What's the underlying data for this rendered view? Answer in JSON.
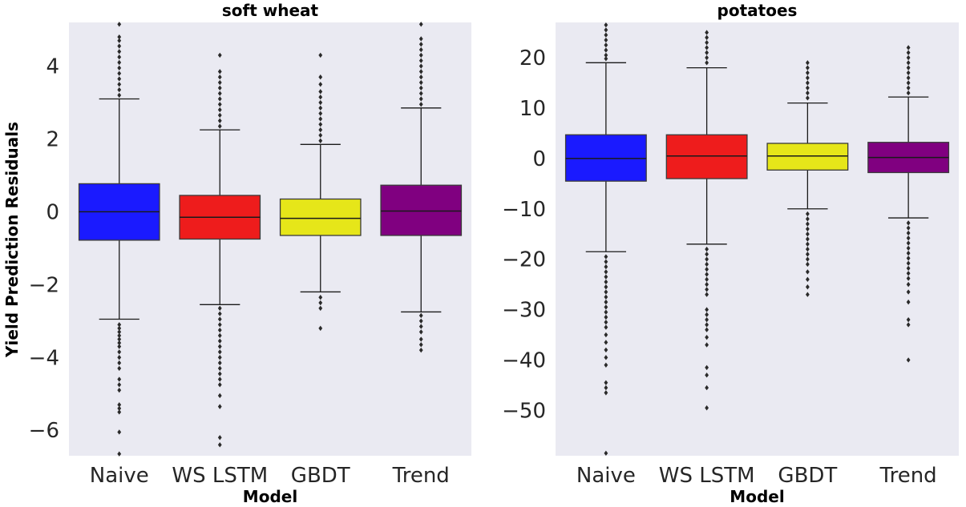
{
  "ylabel": "Yield Prediction Residuals",
  "colors": {
    "plot_bg": "#eaeaf2",
    "whisker": "#1a1a1a"
  },
  "chart_data": [
    {
      "type": "box",
      "title": "soft wheat",
      "xlabel": "Model",
      "ylabel": "Yield Prediction Residuals",
      "ylim": [
        -6.7,
        5.2
      ],
      "yticks": [
        4,
        2,
        0,
        -2,
        -4,
        -6
      ],
      "ytick_labels": [
        "4",
        "2",
        "0",
        "−2",
        "−4",
        "−6"
      ],
      "categories": [
        "Naive",
        "WS LSTM",
        "GBDT",
        "Trend"
      ],
      "boxes": [
        {
          "name": "Naive",
          "color": "#1a1aff",
          "whislo": -2.95,
          "q1": -0.78,
          "med": 0.0,
          "q3": 0.77,
          "whishi": 3.1,
          "fliers": [
            3.2,
            3.35,
            3.5,
            3.65,
            3.8,
            3.95,
            4.1,
            4.25,
            4.4,
            4.55,
            4.7,
            4.8,
            5.15,
            -3.1,
            -3.2,
            -3.3,
            -3.4,
            -3.5,
            -3.6,
            -3.7,
            -3.85,
            -4.0,
            -4.15,
            -4.3,
            -4.6,
            -4.75,
            -4.9,
            -5.3,
            -5.4,
            -5.5,
            -6.05,
            -6.65
          ]
        },
        {
          "name": "WS LSTM",
          "color": "#ee1c1c",
          "whislo": -2.55,
          "q1": -0.75,
          "med": -0.15,
          "q3": 0.45,
          "whishi": 2.25,
          "fliers": [
            2.35,
            2.5,
            2.65,
            2.8,
            2.95,
            3.1,
            3.25,
            3.4,
            3.55,
            3.7,
            3.85,
            4.3,
            -2.65,
            -2.8,
            -2.95,
            -3.1,
            -3.25,
            -3.4,
            -3.55,
            -3.7,
            -3.85,
            -4.0,
            -4.15,
            -4.3,
            -4.45,
            -4.6,
            -4.75,
            -5.05,
            -5.35,
            -6.2,
            -6.4
          ]
        },
        {
          "name": "GBDT",
          "color": "#e6e619",
          "whislo": -2.2,
          "q1": -0.65,
          "med": -0.18,
          "q3": 0.35,
          "whishi": 1.85,
          "fliers": [
            1.95,
            2.1,
            2.25,
            2.4,
            2.55,
            2.7,
            2.85,
            3.0,
            3.15,
            3.3,
            3.5,
            3.7,
            4.3,
            -2.35,
            -2.5,
            -2.65,
            -3.2
          ]
        },
        {
          "name": "Trend",
          "color": "#800080",
          "whislo": -2.75,
          "q1": -0.65,
          "med": 0.02,
          "q3": 0.73,
          "whishi": 2.85,
          "fliers": [
            2.95,
            3.1,
            3.25,
            3.4,
            3.55,
            3.7,
            3.85,
            4.0,
            4.15,
            4.3,
            4.45,
            4.6,
            4.75,
            5.15,
            -2.85,
            -3.0,
            -3.15,
            -3.3,
            -3.5,
            -3.65,
            -3.8
          ]
        }
      ]
    },
    {
      "type": "box",
      "title": "potatoes",
      "xlabel": "Model",
      "ylim": [
        -59,
        27
      ],
      "yticks": [
        20,
        10,
        0,
        -10,
        -20,
        -30,
        -40,
        -50
      ],
      "ytick_labels": [
        "20",
        "10",
        "0",
        "−10",
        "−20",
        "−30",
        "−40",
        "−50"
      ],
      "categories": [
        "Naive",
        "WS LSTM",
        "GBDT",
        "Trend"
      ],
      "boxes": [
        {
          "name": "Naive",
          "color": "#1a1aff",
          "whislo": -18.5,
          "q1": -4.5,
          "med": 0.0,
          "q3": 4.7,
          "whishi": 19.0,
          "fliers": [
            19.8,
            20.5,
            21.5,
            22.5,
            23.5,
            24.5,
            25.5,
            26.5,
            -19.5,
            -20.5,
            -21.5,
            -22.5,
            -23.5,
            -24.5,
            -25.5,
            -26.5,
            -27.5,
            -28.5,
            -29.5,
            -30.5,
            -31.5,
            -32.5,
            -33.5,
            -35.0,
            -36.5,
            -38.0,
            -39.5,
            -41.0,
            -44.5,
            -45.5,
            -46.5,
            -58.5
          ]
        },
        {
          "name": "WS LSTM",
          "color": "#ee1c1c",
          "whislo": -17.0,
          "q1": -4.0,
          "med": 0.5,
          "q3": 4.7,
          "whishi": 18.0,
          "fliers": [
            19.0,
            20.0,
            21.0,
            22.0,
            23.0,
            24.0,
            25.0,
            -18.0,
            -19.0,
            -20.0,
            -21.0,
            -22.0,
            -23.0,
            -24.0,
            -25.0,
            -26.0,
            -27.0,
            -30.0,
            -31.0,
            -32.0,
            -33.0,
            -34.0,
            -35.5,
            -37.0,
            -41.5,
            -43.0,
            -45.5,
            -49.5
          ]
        },
        {
          "name": "GBDT",
          "color": "#e6e619",
          "whislo": -10.0,
          "q1": -2.3,
          "med": 0.5,
          "q3": 3.0,
          "whishi": 11.0,
          "fliers": [
            12.0,
            13.0,
            14.0,
            15.0,
            16.0,
            17.0,
            18.0,
            19.0,
            -11.0,
            -12.0,
            -13.0,
            -14.0,
            -15.0,
            -16.0,
            -17.0,
            -18.0,
            -19.0,
            -20.0,
            -21.0,
            -22.5,
            -24.0,
            -25.5,
            -27.0
          ]
        },
        {
          "name": "Trend",
          "color": "#800080",
          "whislo": -11.8,
          "q1": -2.8,
          "med": 0.2,
          "q3": 3.2,
          "whishi": 12.2,
          "fliers": [
            13.0,
            14.0,
            15.0,
            16.0,
            17.0,
            18.0,
            19.0,
            20.0,
            21.0,
            22.0,
            -12.8,
            -13.8,
            -14.8,
            -15.8,
            -16.8,
            -17.8,
            -18.8,
            -19.8,
            -20.8,
            -21.8,
            -22.8,
            -23.8,
            -25.0,
            -26.5,
            -28.5,
            -32.0,
            -33.0,
            -40.0
          ]
        }
      ]
    }
  ]
}
